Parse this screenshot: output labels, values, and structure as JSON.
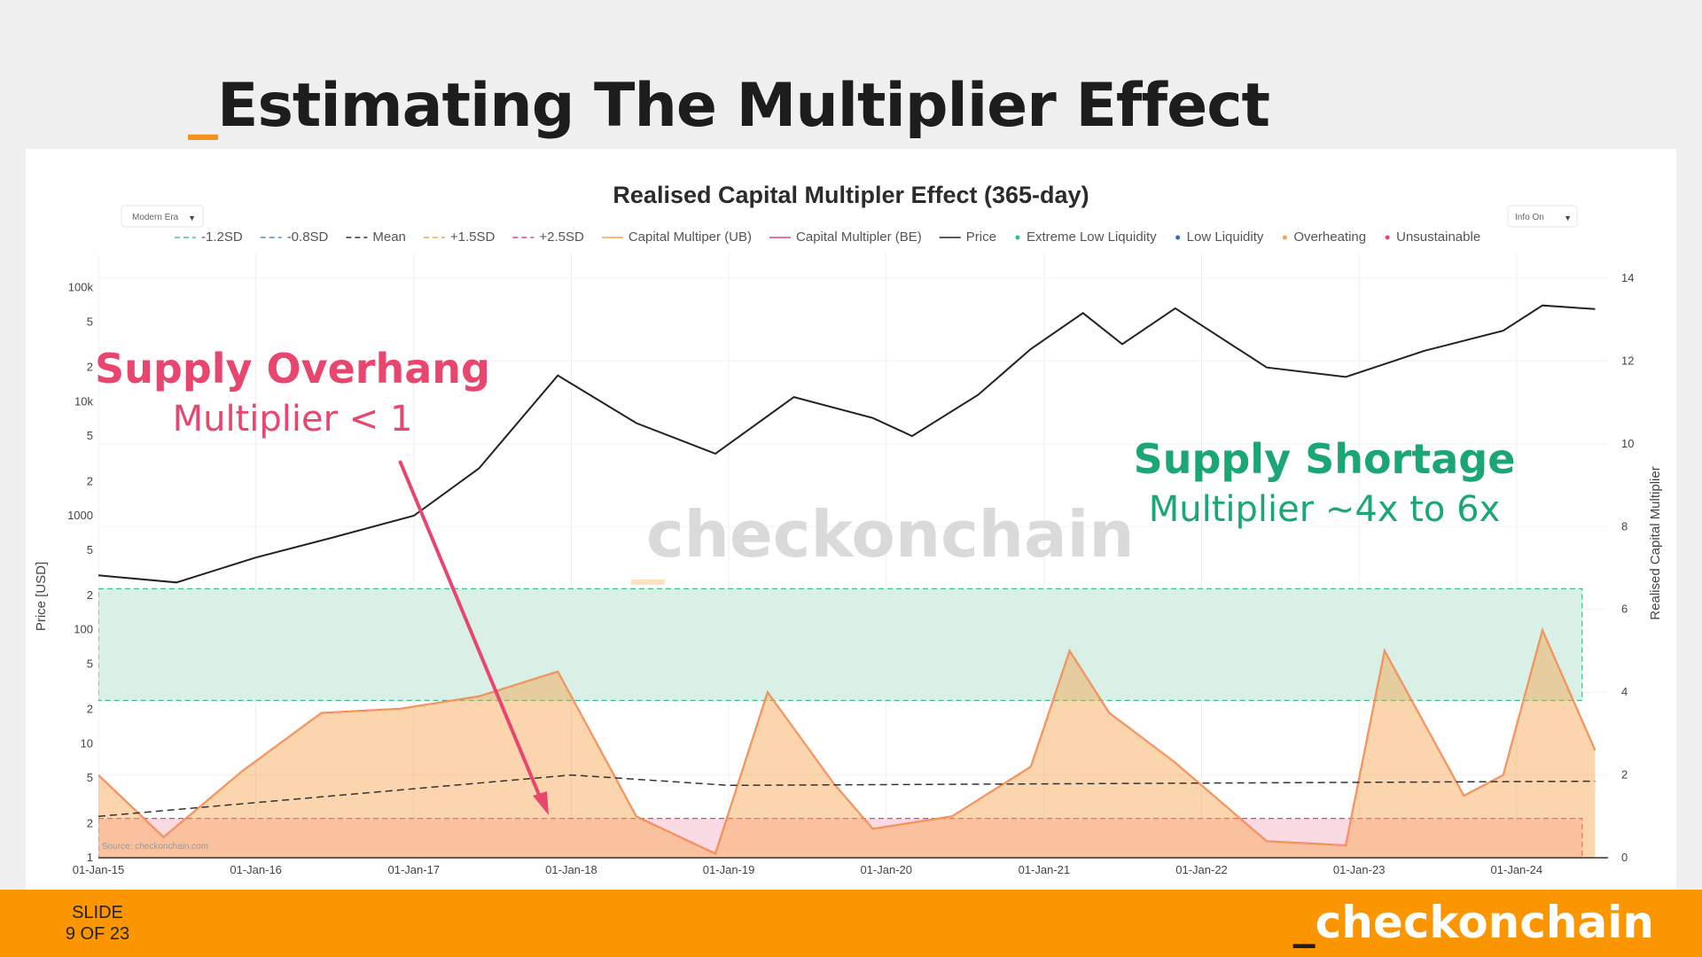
{
  "slide": {
    "title_prefix": "_",
    "title": "Estimating The Multiplier Effect",
    "number_label": "SLIDE",
    "number": "9 OF 23",
    "brand_prefix": "_",
    "brand": "checkonchain",
    "accent": "#f7931a",
    "footer_color": "#fb9600"
  },
  "controls": {
    "era_select": "Modern Era",
    "info_toggle": "Info On"
  },
  "annotations": {
    "overhang_title": "Supply Overhang",
    "overhang_sub": "Multiplier < 1",
    "overhang_color": "#e8456f",
    "shortage_title": "Supply Shortage",
    "shortage_sub": "Multiplier ~4x to 6x",
    "shortage_color": "#1aa774",
    "watermark": "checkonchain",
    "source": "Source: checkonchain.com"
  },
  "chart_data": {
    "type": "line",
    "title": "Realised Capital Multipler Effect (365-day)",
    "ylabel_left": "Price [USD]",
    "ylabel_right": "Realised Capital Multiplier",
    "y_left_scale": "log",
    "y_left_range": [
      1,
      200000
    ],
    "y_right_range": [
      0,
      14.6
    ],
    "x_range": [
      "2015-01-01",
      "2024-07-31"
    ],
    "x_ticks": [
      "01-Jan-15",
      "01-Jan-16",
      "01-Jan-17",
      "01-Jan-18",
      "01-Jan-19",
      "01-Jan-20",
      "01-Jan-21",
      "01-Jan-22",
      "01-Jan-23",
      "01-Jan-24"
    ],
    "y_left_ticks": [
      "1",
      "2",
      "5",
      "10",
      "2",
      "5",
      "100",
      "2",
      "5",
      "1000",
      "2",
      "5",
      "10k",
      "2",
      "5",
      "100k"
    ],
    "y_right_ticks": [
      "0",
      "2",
      "4",
      "6",
      "8",
      "10",
      "12",
      "14"
    ],
    "legend": [
      {
        "label": "-1.2SD",
        "color": "#4fc39a",
        "style": "dash"
      },
      {
        "label": "-0.8SD",
        "color": "#4a90e2",
        "style": "dash"
      },
      {
        "label": "Mean",
        "color": "#333333",
        "style": "dash"
      },
      {
        "label": "+1.5SD",
        "color": "#f7a24a",
        "style": "dash"
      },
      {
        "label": "+2.5SD",
        "color": "#e8456f",
        "style": "dash"
      },
      {
        "label": "Capital Multiper (UB)",
        "color": "#f7a24a",
        "style": "line"
      },
      {
        "label": "Capital Multipler (BE)",
        "color": "#e8456f",
        "style": "line"
      },
      {
        "label": "Price",
        "color": "#222222",
        "style": "line"
      },
      {
        "label": "Extreme Low Liquidity",
        "color": "#2dbf8f",
        "style": "dot"
      },
      {
        "label": "Low Liquidity",
        "color": "#2b6cc4",
        "style": "dot"
      },
      {
        "label": "Overheating",
        "color": "#f7a24a",
        "style": "dot"
      },
      {
        "label": "Unsustainable",
        "color": "#e8456f",
        "style": "dot"
      }
    ],
    "bands": {
      "shortage_band_multiplier": [
        3.8,
        6.5
      ],
      "overhang_band_multiplier": [
        0,
        0.95
      ]
    },
    "price_series": {
      "name": "Price",
      "x": [
        "2015-01",
        "2015-07",
        "2016-01",
        "2016-07",
        "2017-01",
        "2017-06",
        "2017-12",
        "2018-06",
        "2018-12",
        "2019-06",
        "2019-12",
        "2020-03",
        "2020-08",
        "2020-12",
        "2021-04",
        "2021-07",
        "2021-11",
        "2022-06",
        "2022-12",
        "2023-06",
        "2023-12",
        "2024-03",
        "2024-07"
      ],
      "values": [
        300,
        260,
        430,
        650,
        1000,
        2600,
        17000,
        6500,
        3500,
        11000,
        7200,
        5000,
        11500,
        29000,
        60000,
        32000,
        66000,
        20000,
        16500,
        28000,
        42000,
        70000,
        65000
      ]
    },
    "multiplier_ub": {
      "name": "Capital Multiper (UB)",
      "x": [
        "2015-01",
        "2015-06",
        "2015-12",
        "2016-06",
        "2016-12",
        "2017-06",
        "2017-12",
        "2018-06",
        "2018-12",
        "2019-04",
        "2019-09",
        "2019-12",
        "2020-06",
        "2020-12",
        "2021-03",
        "2021-06",
        "2021-11",
        "2022-06",
        "2022-12",
        "2023-03",
        "2023-09",
        "2023-12",
        "2024-03",
        "2024-07"
      ],
      "values": [
        2.0,
        0.5,
        2.1,
        3.5,
        3.6,
        3.9,
        4.5,
        1.0,
        0.1,
        4.0,
        1.8,
        0.7,
        1.0,
        2.2,
        5.0,
        3.5,
        2.3,
        0.4,
        0.3,
        5.0,
        1.5,
        2.0,
        5.5,
        2.6
      ]
    },
    "mean_line": {
      "name": "Mean",
      "x": [
        "2015-01",
        "2018-01",
        "2019-01",
        "2024-07"
      ],
      "values": [
        1.0,
        2.0,
        1.75,
        1.85
      ]
    }
  }
}
